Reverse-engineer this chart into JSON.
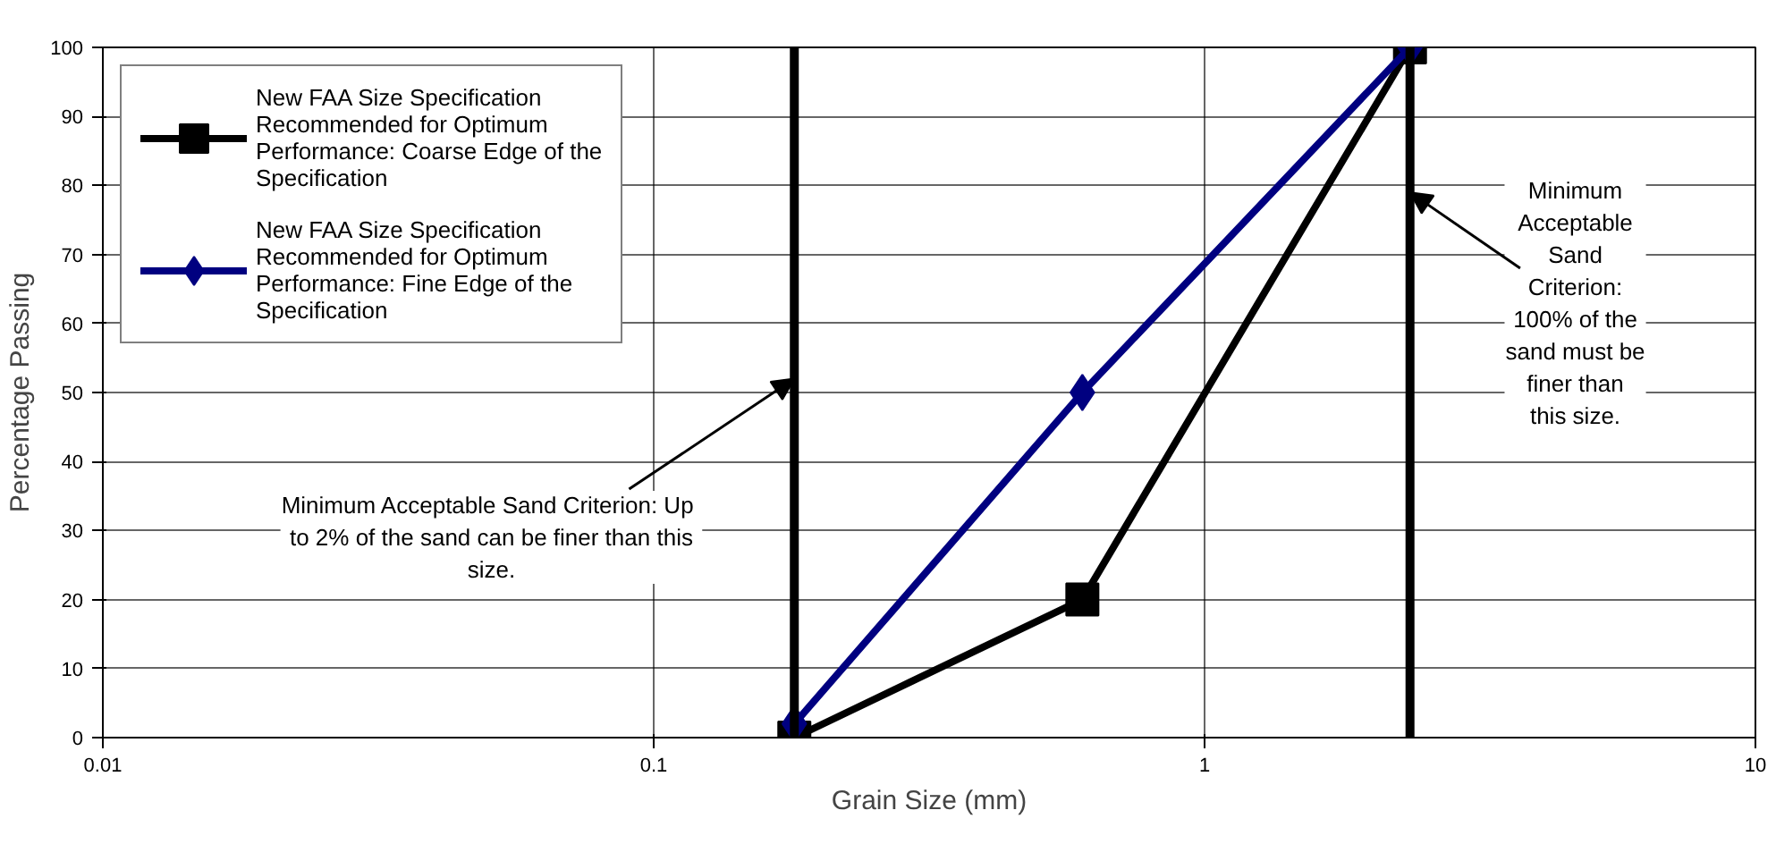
{
  "chart_data": {
    "type": "line",
    "xlabel": "Grain Size (mm)",
    "ylabel": "Percentage Passing",
    "log": "x",
    "xlim": [
      0.01,
      10
    ],
    "xticks": [
      0.01,
      0.1,
      1,
      10
    ],
    "ylim": [
      0,
      100
    ],
    "yticks": [
      0,
      10,
      20,
      30,
      40,
      50,
      60,
      70,
      80,
      90,
      100
    ],
    "grid": true,
    "legend": "top left",
    "line_style": "solid",
    "series": [
      {
        "name": "New FAA Size Specification Recommended for Optimum Performance: Coarse Edge of the Specification",
        "color": "#000000",
        "marker": "square",
        "x": [
          0.18,
          0.6,
          2.36
        ],
        "values": [
          0,
          20,
          100
        ]
      },
      {
        "name": "New FAA Size Specification Recommended for Optimum Performance: Fine Edge of the Specification",
        "color": "#000080",
        "marker": "diamond",
        "x": [
          0.18,
          0.6,
          2.36
        ],
        "values": [
          2,
          50,
          100
        ]
      }
    ],
    "ref_lines": [
      {
        "axis": "x",
        "value": 0.18,
        "color": "#000000"
      },
      {
        "axis": "x",
        "value": 2.36,
        "color": "#000000"
      }
    ],
    "annotations": [
      {
        "text": "Minimum Acceptable Sand Criterion:  Up to 2% of the sand can be finer than this size.",
        "x": 0.18,
        "y": 52
      },
      {
        "text": "Minimum Acceptable Sand Criterion: 100% of the sand must be finer than this size.",
        "x": 2.36,
        "y": 79
      }
    ]
  }
}
